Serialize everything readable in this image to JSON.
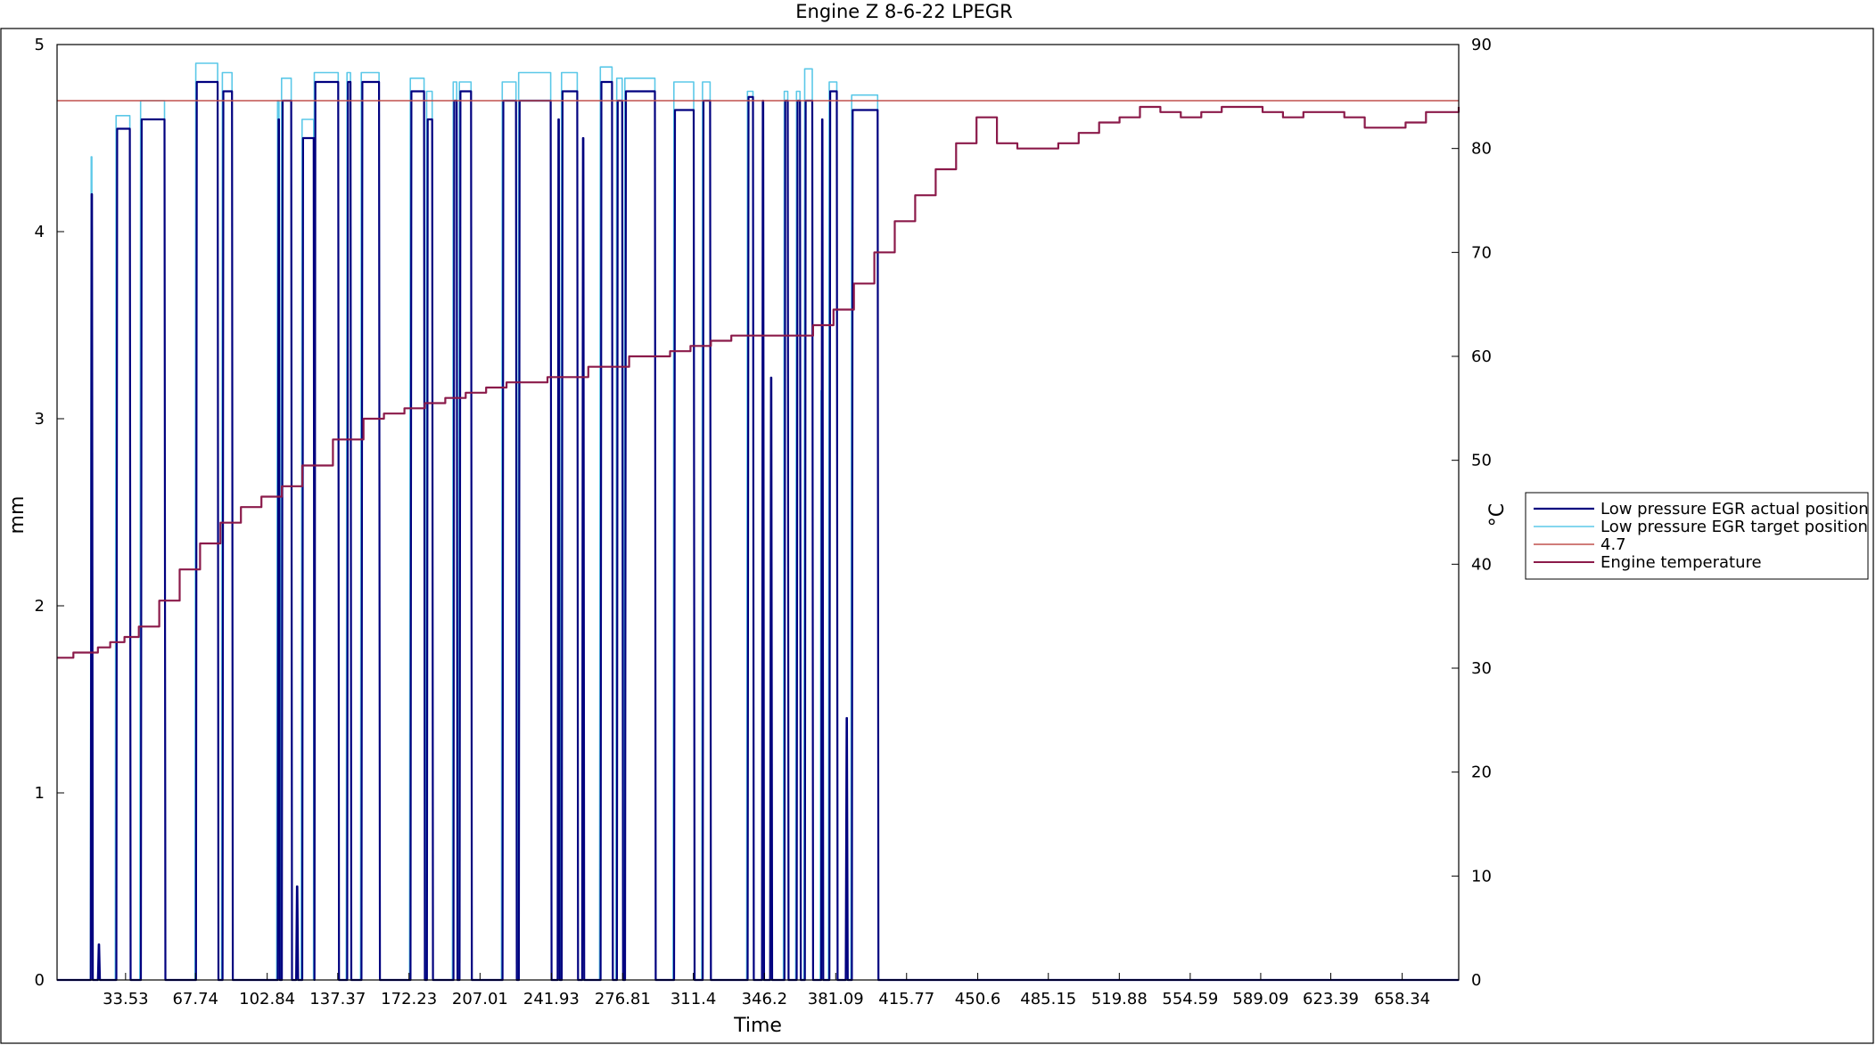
{
  "chart_data": {
    "type": "line",
    "title": "Engine Z 8-6-22 LPEGR",
    "xlabel": "Time",
    "ylabel_left": "mm",
    "ylabel_right": "°C",
    "xlim": [
      0,
      686
    ],
    "ylim_left": [
      0,
      5
    ],
    "ylim_right": [
      0,
      90
    ],
    "x_tick_labels": [
      "33.53",
      "67.74",
      "102.84",
      "137.37",
      "172.23",
      "207.01",
      "241.93",
      "276.81",
      "311.4",
      "346.2",
      "381.09",
      "415.77",
      "450.6",
      "485.15",
      "519.88",
      "554.59",
      "589.09",
      "623.39",
      "658.34"
    ],
    "y_left_ticks": [
      "0",
      "1",
      "2",
      "3",
      "4",
      "5"
    ],
    "y_right_ticks": [
      "0",
      "10",
      "20",
      "30",
      "40",
      "50",
      "60",
      "70",
      "80",
      "90"
    ],
    "grid": false,
    "legend_position": "right",
    "colors": {
      "actual": "#00007f",
      "target": "#5bc8e8",
      "threshold": "#c0504d",
      "temperature": "#8b1a4a",
      "frame": "#000000"
    },
    "series": [
      {
        "name": "Low pressure EGR actual position",
        "axis": "left",
        "pulses": [
          {
            "start": 16.5,
            "end": 17.5,
            "top": 4.2
          },
          {
            "start": 20,
            "end": 21,
            "top": 0.19
          },
          {
            "start": 29,
            "end": 36,
            "top": 4.55
          },
          {
            "start": 41,
            "end": 53,
            "top": 4.6
          },
          {
            "start": 68,
            "end": 79,
            "top": 4.8
          },
          {
            "start": 81,
            "end": 86,
            "top": 4.75
          },
          {
            "start": 108,
            "end": 109,
            "top": 4.6
          },
          {
            "start": 110,
            "end": 115,
            "top": 4.7
          },
          {
            "start": 117,
            "end": 118,
            "top": 0.5
          },
          {
            "start": 120,
            "end": 126,
            "top": 4.5
          },
          {
            "start": 126,
            "end": 138,
            "top": 4.8
          },
          {
            "start": 142,
            "end": 144,
            "top": 4.8
          },
          {
            "start": 149,
            "end": 158,
            "top": 4.8
          },
          {
            "start": 173,
            "end": 180,
            "top": 4.75
          },
          {
            "start": 181,
            "end": 184,
            "top": 4.6
          },
          {
            "start": 194,
            "end": 196,
            "top": 4.7
          },
          {
            "start": 197,
            "end": 203,
            "top": 4.75
          },
          {
            "start": 218,
            "end": 225,
            "top": 4.7
          },
          {
            "start": 226,
            "end": 242,
            "top": 4.7
          },
          {
            "start": 245,
            "end": 246,
            "top": 4.6
          },
          {
            "start": 247,
            "end": 255,
            "top": 4.75
          },
          {
            "start": 257,
            "end": 258,
            "top": 4.5
          },
          {
            "start": 266,
            "end": 272,
            "top": 4.8
          },
          {
            "start": 274,
            "end": 277,
            "top": 4.7
          },
          {
            "start": 278,
            "end": 293,
            "top": 4.75
          },
          {
            "start": 302,
            "end": 312,
            "top": 4.65
          },
          {
            "start": 316,
            "end": 320,
            "top": 4.7
          },
          {
            "start": 338,
            "end": 341,
            "top": 4.72
          },
          {
            "start": 345,
            "end": 346,
            "top": 4.7
          },
          {
            "start": 349,
            "end": 350,
            "top": 3.22
          },
          {
            "start": 356,
            "end": 358,
            "top": 4.7
          },
          {
            "start": 362,
            "end": 364,
            "top": 4.7
          },
          {
            "start": 366,
            "end": 370,
            "top": 4.7
          },
          {
            "start": 374,
            "end": 375,
            "top": 4.6
          },
          {
            "start": 378,
            "end": 382,
            "top": 4.75
          },
          {
            "start": 386,
            "end": 387,
            "top": 1.4
          },
          {
            "start": 389,
            "end": 402,
            "top": 4.65
          }
        ]
      },
      {
        "name": "Low pressure EGR target position",
        "axis": "left",
        "pulses": [
          {
            "start": 16.3,
            "end": 17.4,
            "top": 4.4
          },
          {
            "start": 28.5,
            "end": 36,
            "top": 4.62
          },
          {
            "start": 40.5,
            "end": 53,
            "top": 4.7
          },
          {
            "start": 67.5,
            "end": 79,
            "top": 4.9
          },
          {
            "start": 80.5,
            "end": 86,
            "top": 4.85
          },
          {
            "start": 107.5,
            "end": 109,
            "top": 4.7
          },
          {
            "start": 109.5,
            "end": 115,
            "top": 4.82
          },
          {
            "start": 119.5,
            "end": 126,
            "top": 4.6
          },
          {
            "start": 125.5,
            "end": 138,
            "top": 4.85
          },
          {
            "start": 141.5,
            "end": 144,
            "top": 4.85
          },
          {
            "start": 148.5,
            "end": 158,
            "top": 4.85
          },
          {
            "start": 172.5,
            "end": 180,
            "top": 4.82
          },
          {
            "start": 180.5,
            "end": 184,
            "top": 4.75
          },
          {
            "start": 193.5,
            "end": 196,
            "top": 4.8
          },
          {
            "start": 196.5,
            "end": 203,
            "top": 4.8
          },
          {
            "start": 217.5,
            "end": 225,
            "top": 4.8
          },
          {
            "start": 225.5,
            "end": 242,
            "top": 4.85
          },
          {
            "start": 246.5,
            "end": 255,
            "top": 4.85
          },
          {
            "start": 265.5,
            "end": 272,
            "top": 4.88
          },
          {
            "start": 273.5,
            "end": 277,
            "top": 4.82
          },
          {
            "start": 277.5,
            "end": 293,
            "top": 4.82
          },
          {
            "start": 301.5,
            "end": 312,
            "top": 4.8
          },
          {
            "start": 315.5,
            "end": 320,
            "top": 4.8
          },
          {
            "start": 337.5,
            "end": 341,
            "top": 4.75
          },
          {
            "start": 355.5,
            "end": 358,
            "top": 4.75
          },
          {
            "start": 361.5,
            "end": 364,
            "top": 4.75
          },
          {
            "start": 365.5,
            "end": 370,
            "top": 4.87
          },
          {
            "start": 373.5,
            "end": 375,
            "top": 3.15
          },
          {
            "start": 377.5,
            "end": 382,
            "top": 4.8
          },
          {
            "start": 388.5,
            "end": 402,
            "top": 4.73
          }
        ]
      },
      {
        "name": "4.7",
        "axis": "left",
        "x": [
          0,
          686
        ],
        "y": [
          4.7,
          4.7
        ]
      },
      {
        "name": "Engine temperature",
        "axis": "right",
        "x": [
          0,
          8,
          20,
          26,
          33,
          40,
          50,
          60,
          70,
          80,
          90,
          100,
          110,
          120,
          135,
          150,
          160,
          170,
          180,
          190,
          200,
          210,
          220,
          230,
          240,
          260,
          280,
          300,
          310,
          320,
          330,
          340,
          350,
          360,
          370,
          380,
          390,
          400,
          410,
          420,
          430,
          440,
          450,
          455,
          460,
          470,
          480,
          490,
          500,
          510,
          520,
          530,
          540,
          550,
          560,
          570,
          580,
          590,
          600,
          610,
          620,
          630,
          640,
          650,
          660,
          670,
          686
        ],
        "y": [
          31,
          31.5,
          32,
          32.5,
          33,
          34,
          36.5,
          39.5,
          42,
          44,
          45.5,
          46.5,
          47.5,
          49.5,
          52,
          54,
          54.5,
          55,
          55.5,
          56,
          56.5,
          57,
          57.5,
          57.5,
          58,
          59,
          60,
          60.5,
          61,
          61.5,
          62,
          62,
          62,
          62,
          63,
          64.5,
          67,
          70,
          73,
          75.5,
          78,
          80.5,
          83,
          83,
          80.5,
          80,
          80,
          80.5,
          81.5,
          82.5,
          83,
          84,
          83.5,
          83,
          83.5,
          84,
          84,
          83.5,
          83,
          83.5,
          83.5,
          83,
          82,
          82,
          82.5,
          83.5,
          84
        ]
      }
    ]
  }
}
